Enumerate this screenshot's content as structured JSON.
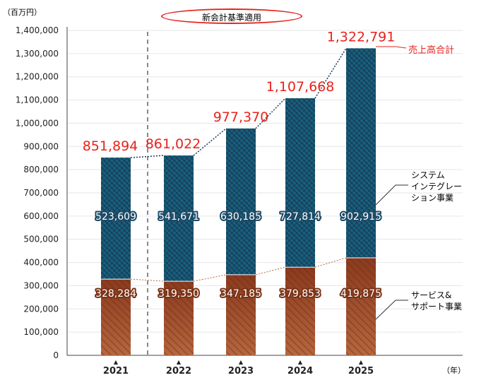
{
  "chart_data": {
    "type": "bar",
    "stacked": true,
    "unit_label": "（百万円）",
    "x_unit_label": "（年）",
    "annotation": "新会計基準適用",
    "categories": [
      "2021",
      "2022",
      "2023",
      "2024",
      "2025"
    ],
    "series": [
      {
        "name": "サービス&\nサポート事業",
        "values": [
          328284,
          319350,
          347185,
          379853,
          419875
        ],
        "labels": [
          "328,284",
          "319,350",
          "347,185",
          "379,853",
          "419,875"
        ],
        "color": "#9a4526"
      },
      {
        "name": "システム\nインテグレー\nション事業",
        "values": [
          523609,
          541671,
          630185,
          727814,
          902915
        ],
        "labels": [
          "523,609",
          "541,671",
          "630,185",
          "727,814",
          "902,915"
        ],
        "color": "#1d4f6e"
      }
    ],
    "totals": {
      "name": "売上高合計",
      "values": [
        851894,
        861022,
        977370,
        1107668,
        1322791
      ],
      "labels": [
        "851,894",
        "861,022",
        "977,370",
        "1,107,668",
        "1,322,791"
      ],
      "color": "#e8231c"
    },
    "ylim": [
      0,
      1400000
    ],
    "yticks": [
      "0",
      "100,000",
      "200,000",
      "300,000",
      "400,000",
      "500,000",
      "600,000",
      "700,000",
      "800,000",
      "900,000",
      "1,000,000",
      "1,100,000",
      "1,200,000",
      "1,300,000",
      "1,400,000"
    ],
    "grid": true
  }
}
